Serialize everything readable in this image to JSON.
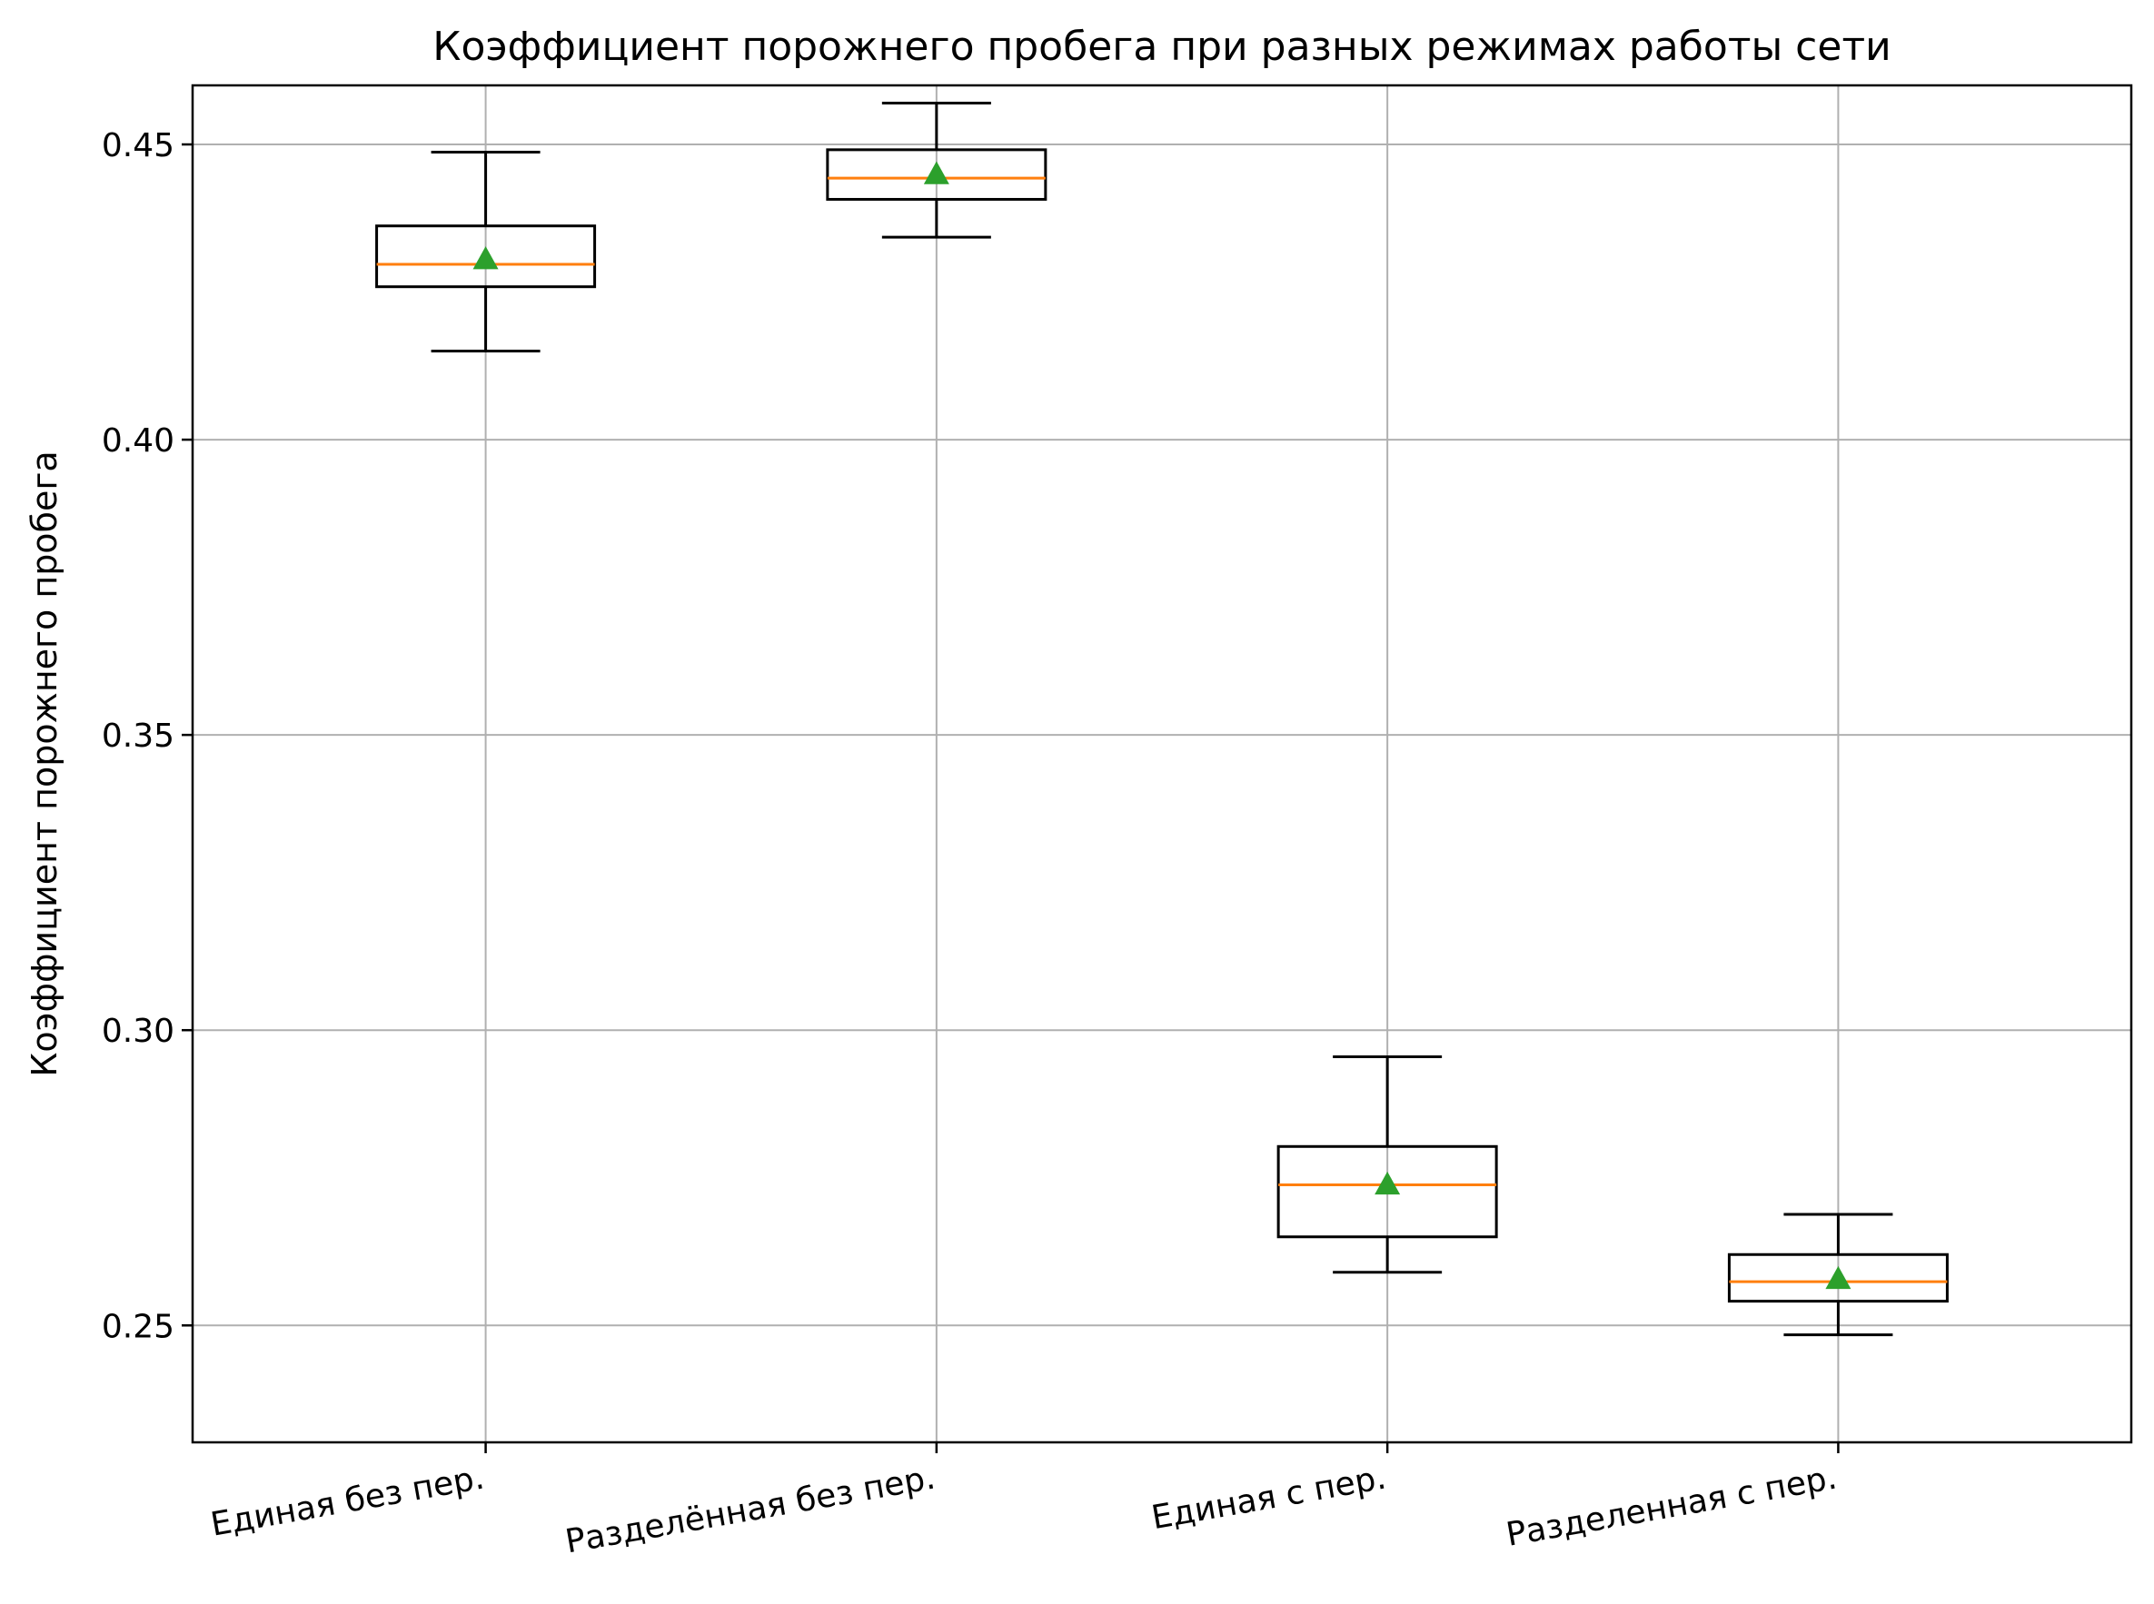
{
  "chart_data": {
    "type": "box",
    "title": "Коэффициент порожнего пробега при разных режимах работы сети",
    "xlabel": "",
    "ylabel": "Коэффициент порожнего пробега",
    "ylim": [
      0.2302,
      0.46
    ],
    "yticks": [
      "0.25",
      "0.30",
      "0.35",
      "0.40",
      "0.45"
    ],
    "grid": true,
    "categories": [
      "Единая без пер.",
      "Разделённая без пер.",
      "Единая с пер.",
      "Разделенная с пер."
    ],
    "boxes": [
      {
        "whisker_low": 0.415,
        "q1": 0.4259,
        "median": 0.4297,
        "q3": 0.4362,
        "whisker_high": 0.4487,
        "mean": 0.4306
      },
      {
        "whisker_low": 0.4343,
        "q1": 0.4407,
        "median": 0.4443,
        "q3": 0.4491,
        "whisker_high": 0.457,
        "mean": 0.445
      },
      {
        "whisker_low": 0.259,
        "q1": 0.265,
        "median": 0.2738,
        "q3": 0.2803,
        "whisker_high": 0.2955,
        "mean": 0.2739
      },
      {
        "whisker_low": 0.2484,
        "q1": 0.2541,
        "median": 0.2574,
        "q3": 0.262,
        "whisker_high": 0.2688,
        "mean": 0.2579
      }
    ],
    "colors": {
      "box": "#000000",
      "median": "#ff7f0e",
      "mean": "#2ca02c",
      "grid": "#b0b0b0"
    }
  }
}
